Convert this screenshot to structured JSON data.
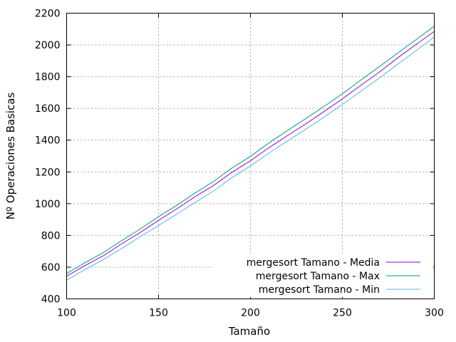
{
  "chart_data": {
    "type": "line",
    "title": "",
    "xlabel": "Tamaño",
    "ylabel": "Nº Operaciones Basicas",
    "xlim": [
      100,
      300
    ],
    "ylim": [
      400,
      2200
    ],
    "xticks": [
      100,
      150,
      200,
      250,
      300
    ],
    "yticks": [
      400,
      600,
      800,
      1000,
      1200,
      1400,
      1600,
      1800,
      2000,
      2200
    ],
    "grid": true,
    "legend_position": "bottom-right",
    "x": [
      100,
      110,
      120,
      130,
      140,
      150,
      160,
      170,
      180,
      190,
      200,
      210,
      220,
      230,
      240,
      250,
      260,
      270,
      280,
      290,
      300
    ],
    "series": [
      {
        "name": "mergesort Tamano - Media",
        "color": "#9400d3",
        "values": [
          543,
          610,
          672,
          748,
          818,
          895,
          968,
          1045,
          1115,
          1198,
          1270,
          1352,
          1428,
          1502,
          1580,
          1660,
          1745,
          1828,
          1918,
          2002,
          2085
        ]
      },
      {
        "name": "mergesort Tamano - Max",
        "color": "#009e73",
        "values": [
          560,
          628,
          692,
          768,
          840,
          918,
          990,
          1068,
          1140,
          1225,
          1298,
          1382,
          1460,
          1535,
          1612,
          1692,
          1778,
          1862,
          1948,
          2032,
          2118
        ]
      },
      {
        "name": "mergesort Tamano - Min",
        "color": "#56b4e9",
        "values": [
          518,
          585,
          648,
          718,
          792,
          862,
          935,
          1008,
          1080,
          1165,
          1238,
          1318,
          1394,
          1468,
          1545,
          1625,
          1708,
          1790,
          1878,
          1962,
          2050
        ]
      }
    ]
  }
}
